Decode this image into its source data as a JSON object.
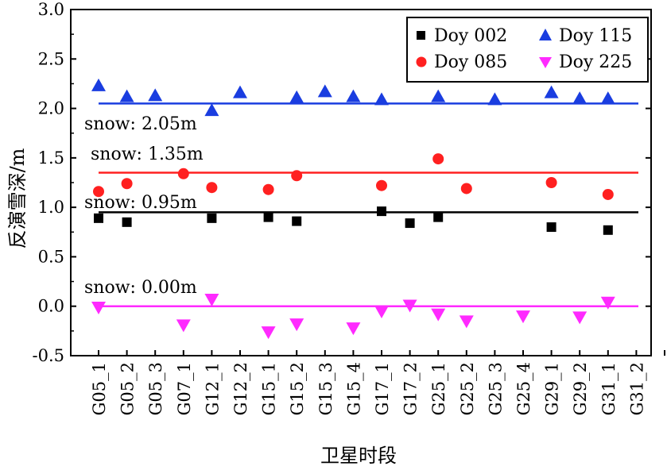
{
  "chart_data": {
    "type": "scatter",
    "xlabel": "卫星时段",
    "ylabel": "反演雪深/m",
    "ylim": [
      -0.5,
      3.0
    ],
    "yticks": [
      "3.0",
      "2.5",
      "2.0",
      "1.5",
      "1.0",
      "0.5",
      "0.0",
      "-0.5"
    ],
    "categories": [
      "G05_1",
      "G05_2",
      "G05_3",
      "G07_1",
      "G12_1",
      "G12_2",
      "G15_1",
      "G15_2",
      "G15_3",
      "G15_4",
      "G17_1",
      "G17_2",
      "G25_1",
      "G25_2",
      "G25_3",
      "G25_4",
      "G29_1",
      "G29_2",
      "G31_1",
      "G31_2"
    ],
    "extra_tick": "‥",
    "series": [
      {
        "name": "Doy 002",
        "marker": "square",
        "color": "#000000",
        "points": [
          [
            0,
            0.89
          ],
          [
            1,
            0.85
          ],
          [
            4,
            0.89
          ],
          [
            6,
            0.9
          ],
          [
            7,
            0.86
          ],
          [
            10,
            0.96
          ],
          [
            11,
            0.84
          ],
          [
            12,
            0.9
          ],
          [
            16,
            0.8
          ],
          [
            18,
            0.77
          ]
        ],
        "fit": 0.95
      },
      {
        "name": "Doy 085",
        "marker": "circle",
        "color": "#ff2020",
        "points": [
          [
            0,
            1.16
          ],
          [
            1,
            1.24
          ],
          [
            3,
            1.34
          ],
          [
            4,
            1.2
          ],
          [
            6,
            1.18
          ],
          [
            7,
            1.32
          ],
          [
            10,
            1.22
          ],
          [
            12,
            1.49
          ],
          [
            13,
            1.19
          ],
          [
            16,
            1.25
          ],
          [
            18,
            1.13
          ]
        ],
        "fit": 1.35
      },
      {
        "name": "Doy 115",
        "marker": "triangle-up",
        "color": "#1a3de0",
        "points": [
          [
            0,
            2.23
          ],
          [
            1,
            2.12
          ],
          [
            2,
            2.13
          ],
          [
            4,
            1.98
          ],
          [
            5,
            2.16
          ],
          [
            7,
            2.11
          ],
          [
            8,
            2.17
          ],
          [
            9,
            2.12
          ],
          [
            10,
            2.09
          ],
          [
            12,
            2.12
          ],
          [
            14,
            2.09
          ],
          [
            16,
            2.16
          ],
          [
            17,
            2.1
          ],
          [
            18,
            2.1
          ]
        ],
        "fit": 2.05
      },
      {
        "name": "Doy 225",
        "marker": "triangle-down",
        "color": "#ff2aff",
        "points": [
          [
            0,
            -0.01
          ],
          [
            3,
            -0.19
          ],
          [
            4,
            0.07
          ],
          [
            6,
            -0.26
          ],
          [
            7,
            -0.18
          ],
          [
            9,
            -0.22
          ],
          [
            10,
            -0.05
          ],
          [
            11,
            0.01
          ],
          [
            12,
            -0.08
          ],
          [
            13,
            -0.15
          ],
          [
            15,
            -0.1
          ],
          [
            17,
            -0.11
          ],
          [
            18,
            0.04
          ]
        ],
        "fit": 0.0
      }
    ],
    "annotations": [
      "snow: 2.05m",
      "snow: 1.35m",
      "snow: 0.95m",
      "snow: 0.00m"
    ],
    "legend": {
      "position": "top-right",
      "entries": [
        "Doy 002",
        "Doy 115",
        "Doy 085",
        "Doy 225"
      ]
    }
  }
}
